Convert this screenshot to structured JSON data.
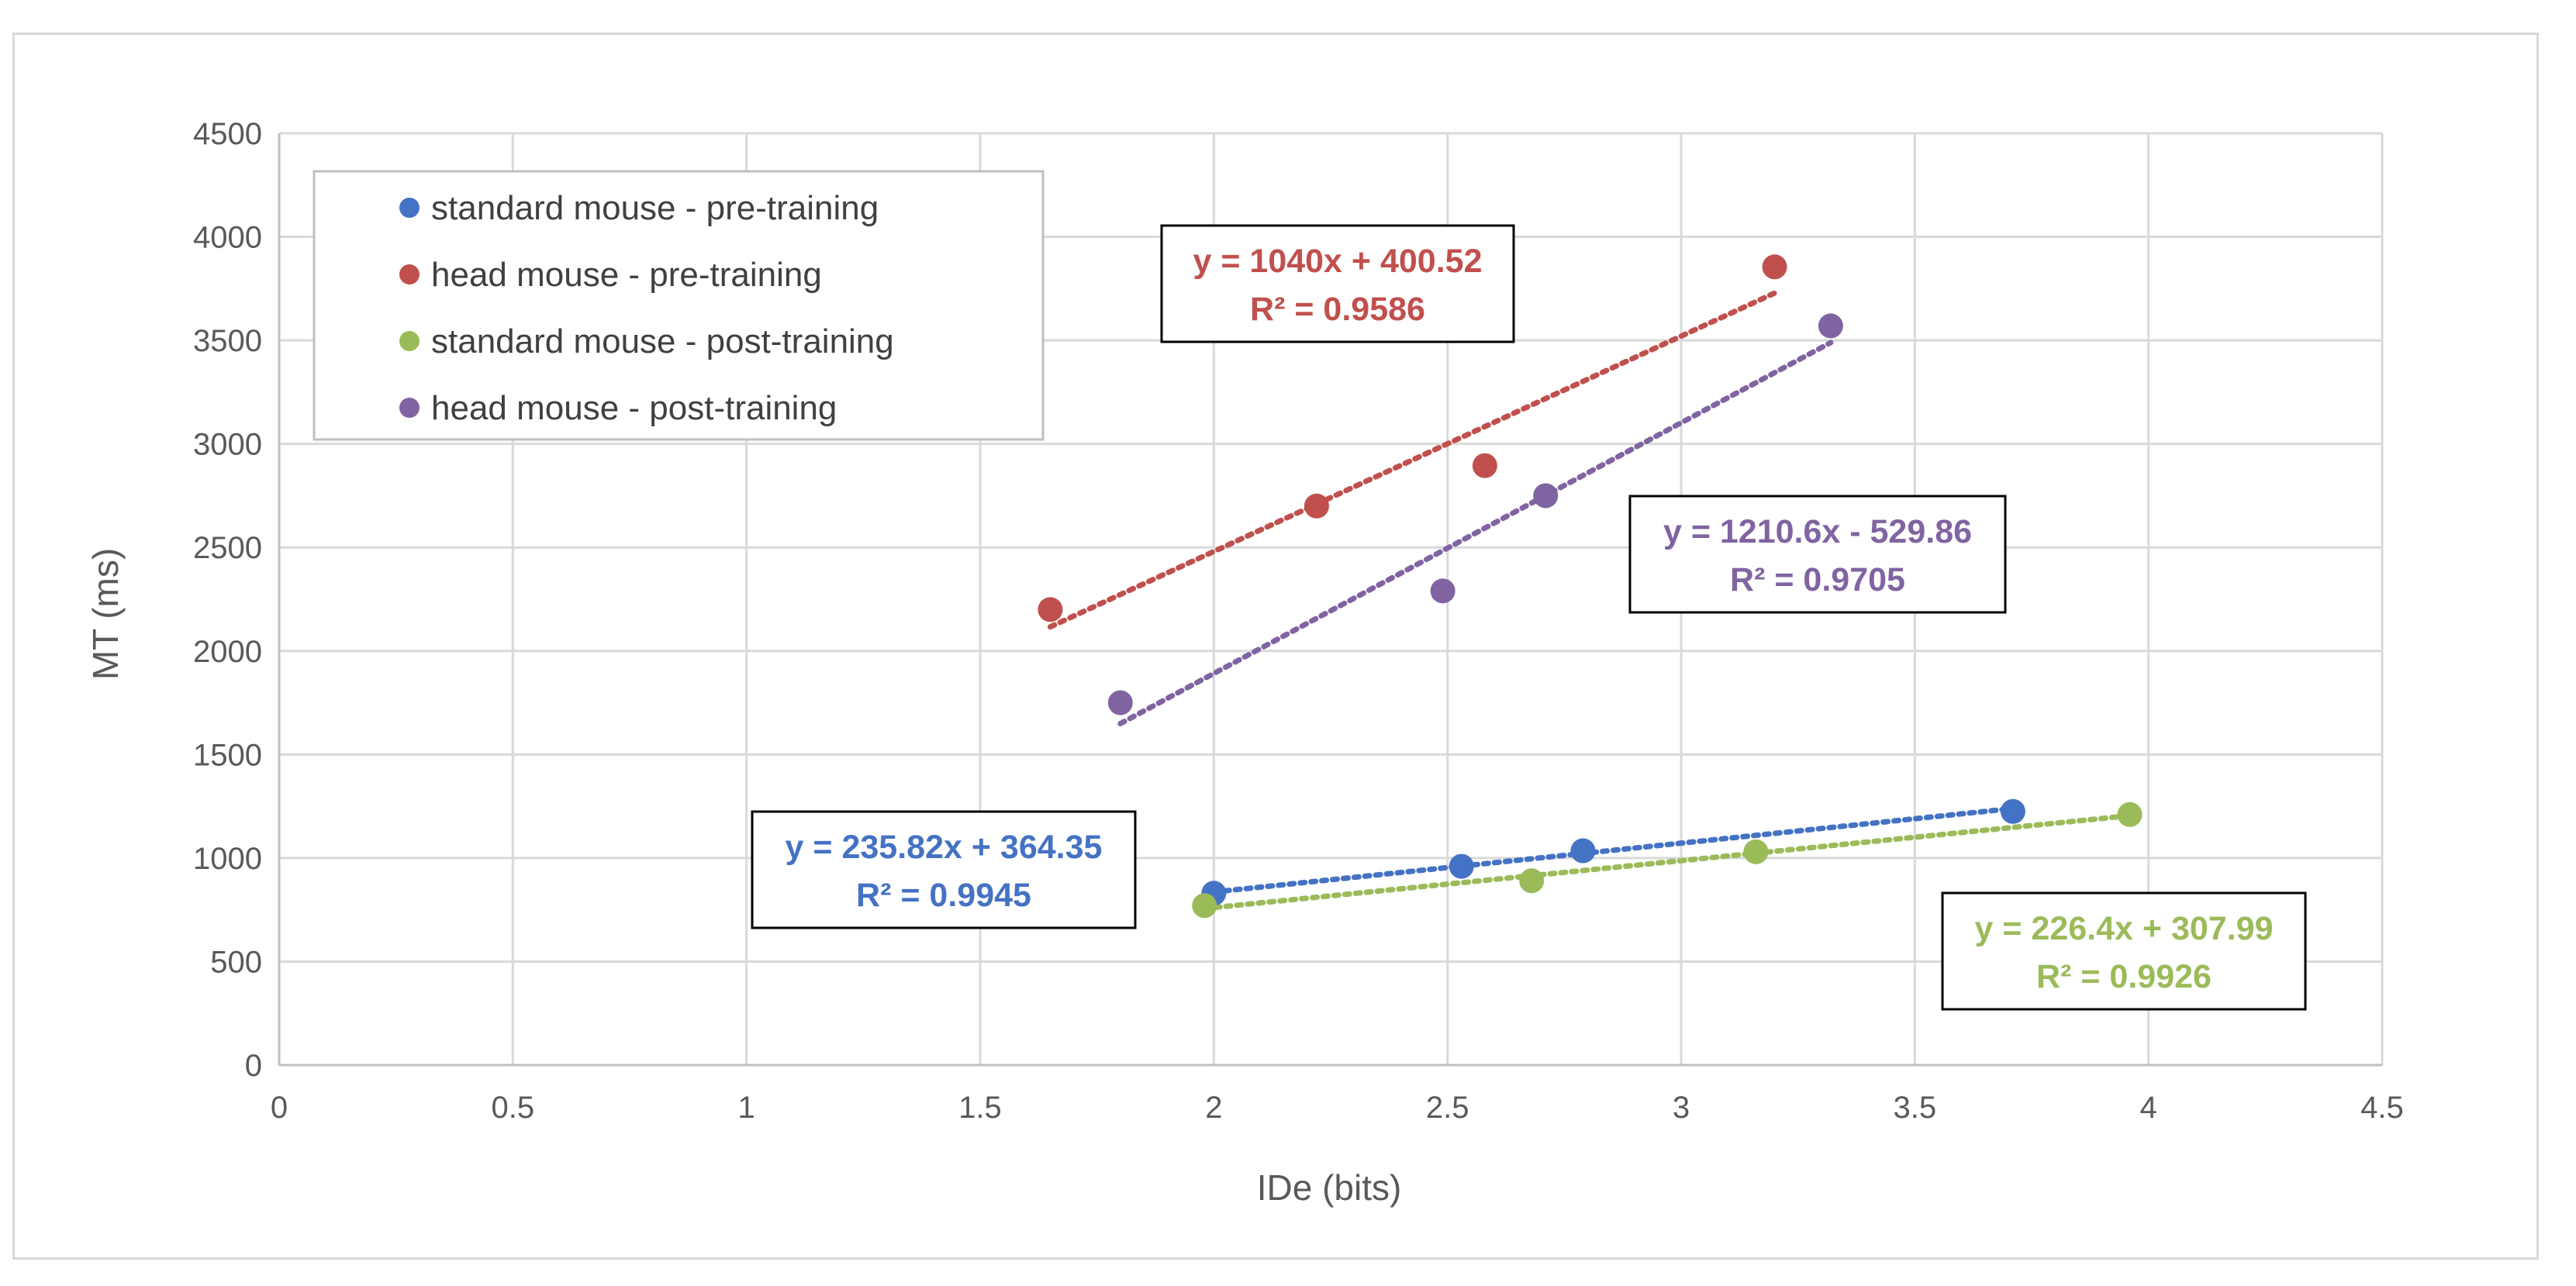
{
  "chart_data": {
    "type": "scatter",
    "title": "",
    "xlabel": "IDe (bits)",
    "ylabel": "MT (ms)",
    "xlim": [
      0,
      4.5
    ],
    "ylim": [
      0,
      4500
    ],
    "x_ticks": [
      "0",
      "0.5",
      "1",
      "1.5",
      "2",
      "2.5",
      "3",
      "3.5",
      "4",
      "4.5"
    ],
    "y_ticks": [
      "0",
      "500",
      "1000",
      "1500",
      "2000",
      "2500",
      "3000",
      "3500",
      "4000",
      "4500"
    ],
    "grid": true,
    "legend_position": "top-left",
    "series": [
      {
        "name": "standard mouse - pre-training",
        "color": "#4472c4",
        "points": [
          [
            2.0,
            830
          ],
          [
            2.53,
            960
          ],
          [
            2.79,
            1035
          ],
          [
            3.71,
            1225
          ]
        ],
        "trendline": {
          "slope": 235.82,
          "intercept": 364.35,
          "x_range": [
            2.0,
            3.71
          ]
        },
        "equation": "y = 235.82x + 364.35",
        "r_squared": "R² = 0.9945"
      },
      {
        "name": "head mouse - pre-training",
        "color": "#c0504d",
        "points": [
          [
            1.65,
            2200
          ],
          [
            2.22,
            2700
          ],
          [
            2.58,
            2895
          ],
          [
            3.2,
            3855
          ]
        ],
        "trendline": {
          "slope": 1040,
          "intercept": 400.52,
          "x_range": [
            1.65,
            3.2
          ]
        },
        "equation": "y = 1040x + 400.52",
        "r_squared": "R² = 0.9586"
      },
      {
        "name": "standard mouse - post-training",
        "color": "#9bbb59",
        "points": [
          [
            1.98,
            770
          ],
          [
            2.68,
            890
          ],
          [
            3.16,
            1030
          ],
          [
            3.96,
            1210
          ]
        ],
        "trendline": {
          "slope": 226.4,
          "intercept": 307.99,
          "x_range": [
            1.98,
            3.96
          ]
        },
        "equation": "y = 226.4x + 307.99",
        "r_squared": "R² = 0.9926"
      },
      {
        "name": "head mouse - post-training",
        "color": "#8064a2",
        "points": [
          [
            1.8,
            1750
          ],
          [
            2.49,
            2290
          ],
          [
            2.71,
            2750
          ],
          [
            3.32,
            3570
          ]
        ],
        "trendline": {
          "slope": 1210.6,
          "intercept": -529.86,
          "x_range": [
            1.8,
            3.32
          ]
        },
        "equation": "y = 1210.6x - 529.86",
        "r_squared": "R² = 0.9705"
      }
    ]
  }
}
